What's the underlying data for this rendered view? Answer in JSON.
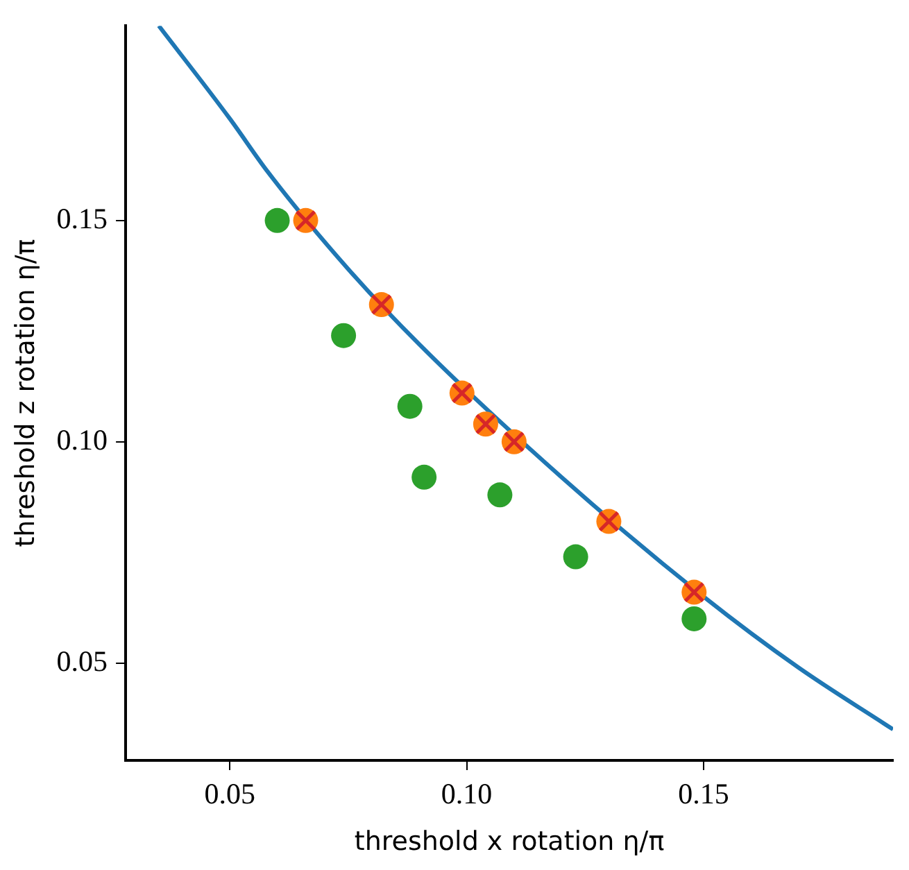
{
  "chart_data": {
    "type": "scatter",
    "xlabel": "threshold x rotation η/π",
    "ylabel": "threshold z rotation η/π",
    "xlim": [
      0.028,
      0.19
    ],
    "ylim": [
      0.028,
      0.194
    ],
    "xticks": [
      {
        "value": 0.05,
        "label": "0.05"
      },
      {
        "value": 0.1,
        "label": "0.10"
      },
      {
        "value": 0.15,
        "label": "0.15"
      }
    ],
    "yticks": [
      {
        "value": 0.05,
        "label": "0.05"
      },
      {
        "value": 0.1,
        "label": "0.10"
      },
      {
        "value": 0.15,
        "label": "0.15"
      }
    ],
    "series": [
      {
        "type": "line",
        "color": "#1f77b4",
        "marker": "none",
        "x": [
          0.035,
          0.05,
          0.058,
          0.075,
          0.09,
          0.12,
          0.15,
          0.17,
          0.19
        ],
        "values": [
          0.194,
          0.173,
          0.161,
          0.139,
          0.122,
          0.092,
          0.065,
          0.049,
          0.035
        ]
      },
      {
        "color": "#ff7f0e",
        "marker": "circle",
        "x": [
          0.066,
          0.082,
          0.099,
          0.104,
          0.11,
          0.13,
          0.148
        ],
        "values": [
          0.15,
          0.131,
          0.111,
          0.104,
          0.1,
          0.082,
          0.066
        ]
      },
      {
        "color": "#d62728",
        "marker": "cross",
        "x": [
          0.066,
          0.082,
          0.099,
          0.104,
          0.11,
          0.13,
          0.148
        ],
        "values": [
          0.15,
          0.131,
          0.111,
          0.104,
          0.1,
          0.082,
          0.066
        ]
      },
      {
        "color": "#2ca02c",
        "marker": "circle",
        "x": [
          0.06,
          0.074,
          0.088,
          0.091,
          0.107,
          0.123,
          0.148
        ],
        "values": [
          0.15,
          0.124,
          0.108,
          0.092,
          0.088,
          0.074,
          0.06
        ]
      }
    ]
  }
}
